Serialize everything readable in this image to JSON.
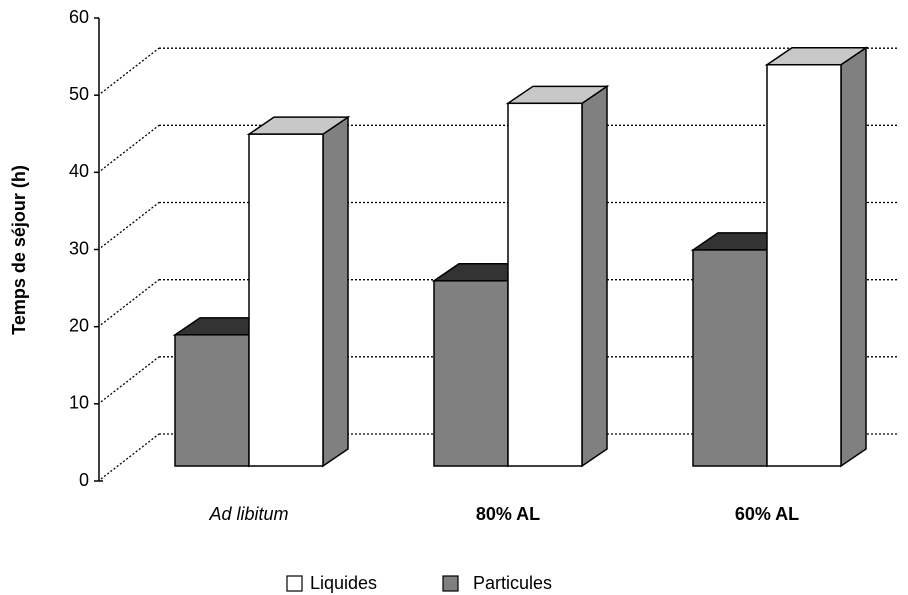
{
  "chart_data": {
    "type": "bar3d",
    "y_label": "Temps de séjour (h)",
    "categories": [
      "Ad libitum",
      "80% AL",
      "60% AL"
    ],
    "series": [
      {
        "name": "Liquides",
        "color": "#ffffff",
        "values": [
          43,
          47,
          52
        ]
      },
      {
        "name": "Particules",
        "color": "#808080",
        "values": [
          17,
          24,
          28
        ]
      }
    ],
    "ylim": [
      0,
      60
    ],
    "yticks": [
      0,
      10,
      20,
      30,
      40,
      50,
      60
    ],
    "grid": true
  }
}
